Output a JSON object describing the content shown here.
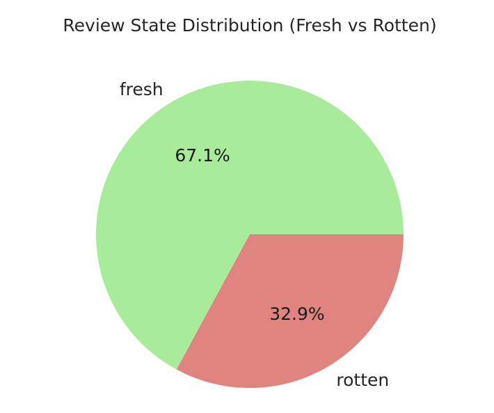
{
  "chart_data": {
    "type": "pie",
    "title": "Review State Distribution (Fresh vs Rotten)",
    "categories": [
      "fresh",
      "rotten"
    ],
    "values": [
      67.1,
      32.9
    ],
    "value_labels": [
      "67.1%",
      "32.9%"
    ],
    "colors": [
      "#a8eb9a",
      "#e08480"
    ],
    "start_angle_deg": 0,
    "direction": "counterclockwise",
    "legend": "none"
  }
}
